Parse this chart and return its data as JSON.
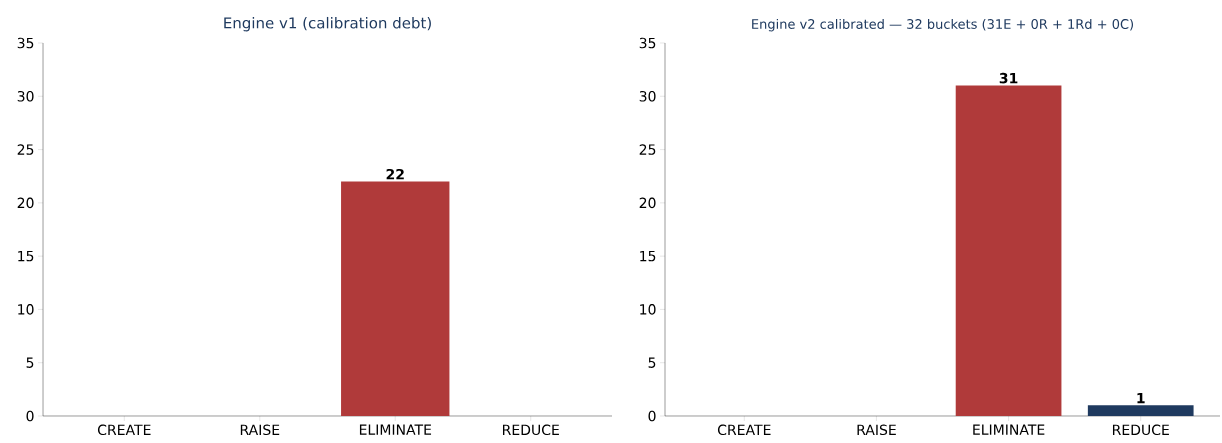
{
  "chart_data": [
    {
      "type": "bar",
      "title": "Engine v1 (calibration debt)",
      "categories": [
        "CREATE",
        "RAISE",
        "ELIMINATE",
        "REDUCE"
      ],
      "values": [
        0,
        0,
        22,
        0
      ],
      "colors": [
        "#b03a3a",
        "#b03a3a",
        "#b03a3a",
        "#1f3a5f"
      ],
      "value_labels": [
        null,
        null,
        "22",
        null
      ],
      "ylim": [
        0,
        35
      ],
      "yticks": [
        0,
        5,
        10,
        15,
        20,
        25,
        30,
        35
      ]
    },
    {
      "type": "bar",
      "title": "Engine v2 calibrated — 32 buckets (31E + 0R + 1Rd + 0C)",
      "categories": [
        "CREATE",
        "RAISE",
        "ELIMINATE",
        "REDUCE"
      ],
      "values": [
        0,
        0,
        31,
        1
      ],
      "colors": [
        "#b03a3a",
        "#b03a3a",
        "#b03a3a",
        "#1f3a5f"
      ],
      "value_labels": [
        null,
        null,
        "31",
        "1"
      ],
      "ylim": [
        0,
        35
      ],
      "yticks": [
        0,
        5,
        10,
        15,
        20,
        25,
        30,
        35
      ]
    }
  ]
}
